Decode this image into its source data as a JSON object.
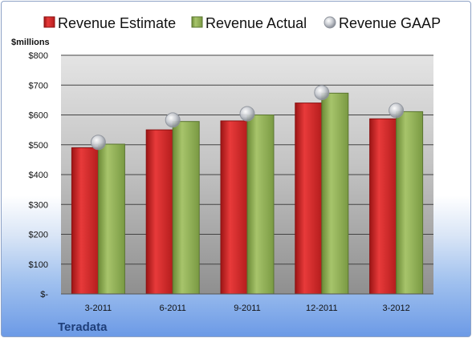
{
  "chart_data": {
    "type": "bar",
    "ylabel": "$millions",
    "categories": [
      "3-2011",
      "6-2011",
      "9-2011",
      "12-2011",
      "3-2012"
    ],
    "yticks": [
      "$-",
      "$100",
      "$200",
      "$300",
      "$400",
      "$500",
      "$600",
      "$700",
      "$800"
    ],
    "ylim": [
      0,
      800
    ],
    "series": [
      {
        "name": "Revenue Estimate",
        "kind": "bar",
        "color": "#d42a2a",
        "values": [
          490,
          550,
          580,
          640,
          587
        ]
      },
      {
        "name": "Revenue Actual",
        "kind": "bar",
        "color": "#8fae55",
        "values": [
          502,
          578,
          600,
          673,
          611
        ]
      },
      {
        "name": "Revenue GAAP",
        "kind": "marker",
        "color": "#b8bcc4",
        "values": [
          508,
          583,
          604,
          675,
          615
        ]
      }
    ],
    "legend_position": "top",
    "grid": true
  },
  "brand": "Teradata"
}
